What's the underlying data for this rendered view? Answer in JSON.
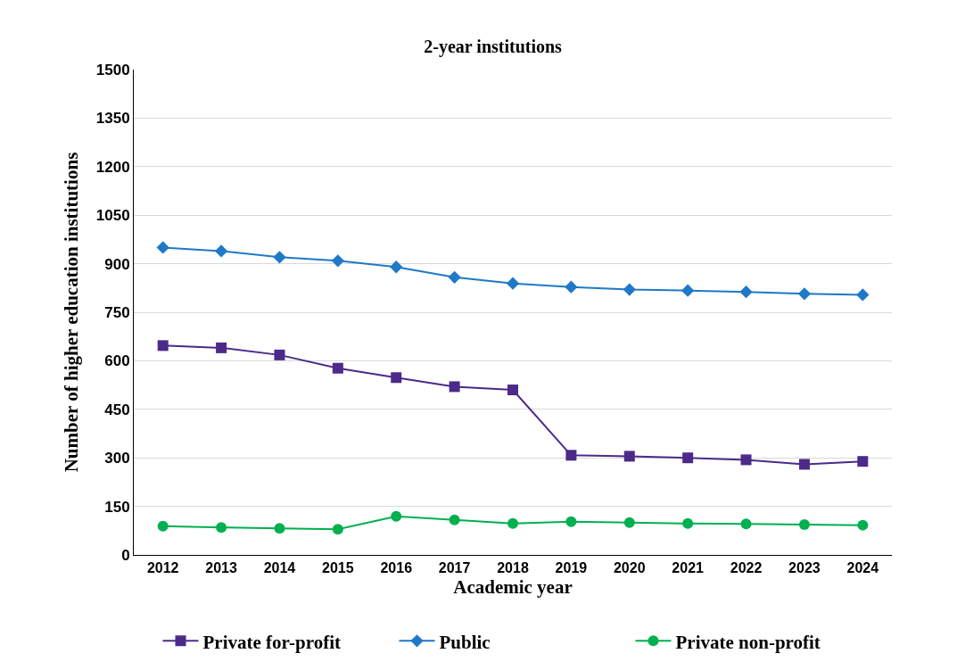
{
  "chart_data": {
    "type": "line",
    "title": "2-year institutions",
    "xlabel": "Academic year",
    "ylabel": "Number of higher education institutions",
    "categories": [
      "2012",
      "2013",
      "2014",
      "2015",
      "2016",
      "2017",
      "2018",
      "2019",
      "2020",
      "2021",
      "2022",
      "2023",
      "2024"
    ],
    "series": [
      {
        "name": "Private for-profit",
        "color": "#4b2a8a",
        "marker": "square",
        "values": [
          647,
          640,
          618,
          577,
          548,
          520,
          510,
          308,
          305,
          300,
          294,
          280,
          289
        ]
      },
      {
        "name": "Public",
        "color": "#1f78c8",
        "marker": "diamond",
        "values": [
          950,
          939,
          920,
          909,
          890,
          858,
          839,
          828,
          820,
          817,
          813,
          807,
          804
        ]
      },
      {
        "name": "Private non-profit",
        "color": "#00b050",
        "marker": "circle",
        "values": [
          89,
          85,
          82,
          79,
          119,
          108,
          97,
          103,
          100,
          97,
          96,
          94,
          92
        ]
      }
    ],
    "ylim": [
      0,
      1500
    ],
    "yticks": [
      0,
      150,
      300,
      450,
      600,
      750,
      900,
      1050,
      1200,
      1350,
      1500
    ],
    "grid": "y",
    "legend": "bottom"
  }
}
